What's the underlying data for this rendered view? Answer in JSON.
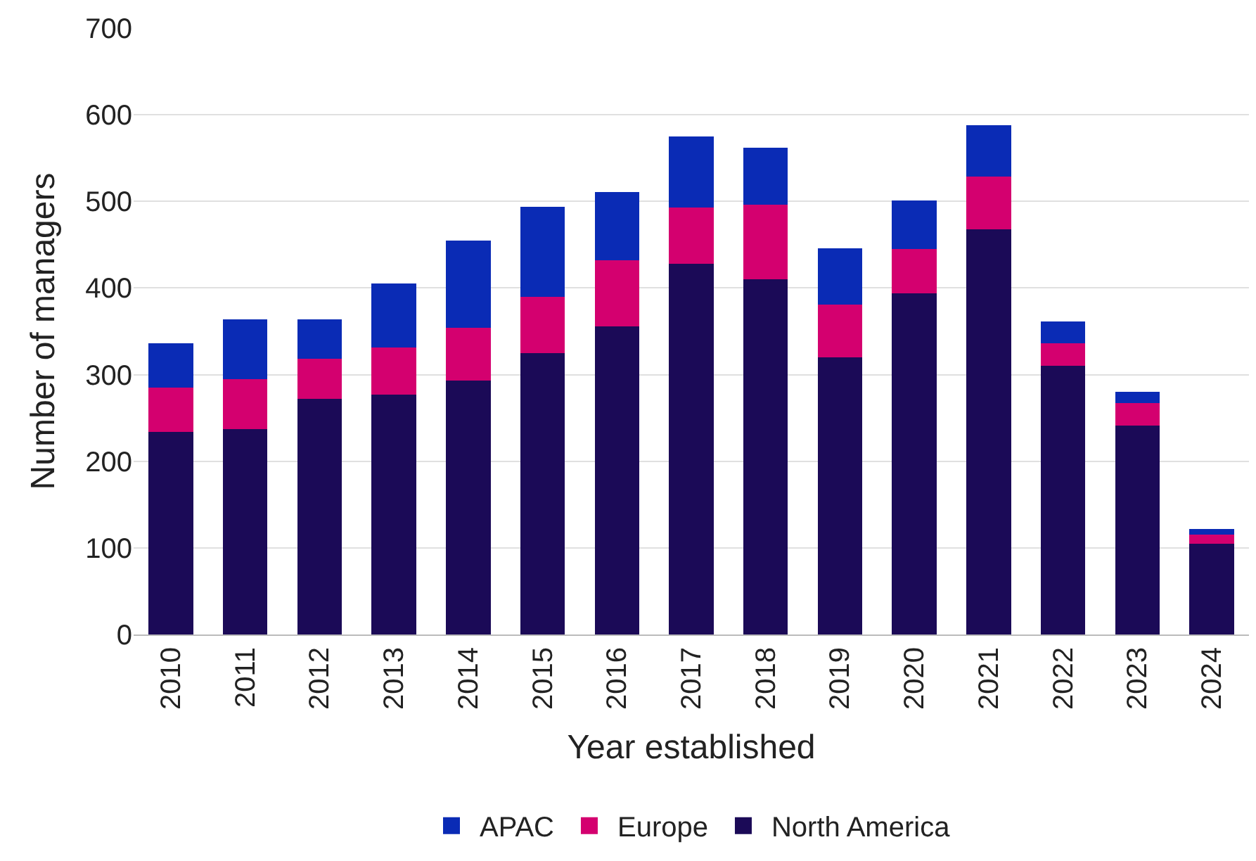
{
  "chart_data": {
    "type": "bar",
    "stacked": true,
    "xlabel": "Year established",
    "ylabel": "Number of managers",
    "categories": [
      "2010",
      "2011",
      "2012",
      "2013",
      "2014",
      "2015",
      "2016",
      "2017",
      "2018",
      "2019",
      "2020",
      "2021",
      "2022",
      "2023",
      "2024"
    ],
    "series": [
      {
        "name": "North America",
        "color": "#1b0a57",
        "values": [
          234,
          237,
          272,
          277,
          293,
          325,
          356,
          428,
          410,
          320,
          394,
          468,
          310,
          241,
          105
        ]
      },
      {
        "name": "Europe",
        "color": "#d4006f",
        "values": [
          51,
          58,
          46,
          54,
          61,
          65,
          76,
          65,
          86,
          61,
          51,
          61,
          26,
          26,
          10
        ]
      },
      {
        "name": "APAC",
        "color": "#0a2bb5",
        "values": [
          51,
          69,
          46,
          74,
          101,
          104,
          79,
          82,
          66,
          65,
          56,
          59,
          25,
          13,
          7
        ]
      }
    ],
    "ylim": [
      0,
      700
    ],
    "yticks": [
      0,
      100,
      200,
      300,
      400,
      500,
      600,
      700
    ],
    "grid": "y",
    "legend": "bottom"
  }
}
